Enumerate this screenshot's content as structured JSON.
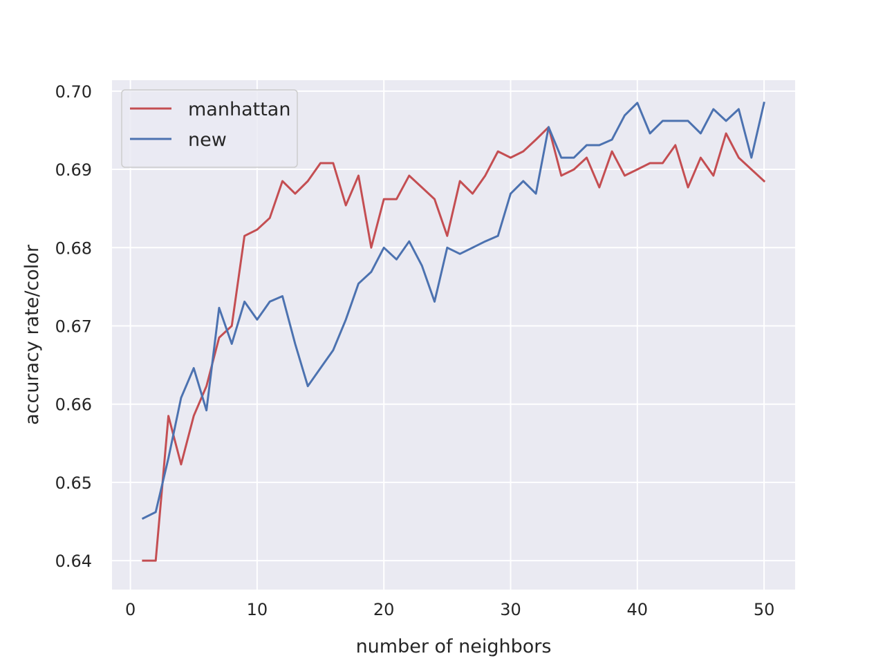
{
  "chart_data": {
    "type": "line",
    "title": "",
    "xlabel": "number of neighbors",
    "ylabel": "accuracy rate/color",
    "xlim": [
      -1.45,
      52.45
    ],
    "ylim": [
      0.6363,
      0.7014
    ],
    "xticks": [
      0,
      10,
      20,
      30,
      40,
      50
    ],
    "xtick_labels": [
      "0",
      "10",
      "20",
      "30",
      "40",
      "50"
    ],
    "yticks": [
      0.64,
      0.65,
      0.66,
      0.67,
      0.68,
      0.69,
      0.7
    ],
    "ytick_labels": [
      "0.64",
      "0.65",
      "0.66",
      "0.67",
      "0.68",
      "0.69",
      "0.70"
    ],
    "grid": true,
    "legend_position": "top-left",
    "x": [
      1,
      2,
      3,
      4,
      5,
      6,
      7,
      8,
      9,
      10,
      11,
      12,
      13,
      14,
      15,
      16,
      17,
      18,
      19,
      20,
      21,
      22,
      23,
      24,
      25,
      26,
      27,
      28,
      29,
      30,
      31,
      32,
      33,
      34,
      35,
      36,
      37,
      38,
      39,
      40,
      41,
      42,
      43,
      44,
      45,
      46,
      47,
      48,
      49,
      50
    ],
    "series": [
      {
        "name": "manhattan",
        "color": "#c44e52",
        "values": [
          0.64,
          0.64,
          0.6585,
          0.6523,
          0.6585,
          0.6623,
          0.6685,
          0.67,
          0.6815,
          0.6823,
          0.6838,
          0.6885,
          0.6869,
          0.6885,
          0.6908,
          0.6908,
          0.6854,
          0.6892,
          0.68,
          0.6862,
          0.6862,
          0.6892,
          0.6877,
          0.6862,
          0.6815,
          0.6885,
          0.6869,
          0.6892,
          0.6923,
          0.6915,
          0.6923,
          0.6938,
          0.6954,
          0.6892,
          0.69,
          0.6915,
          0.6877,
          0.6923,
          0.6892,
          0.69,
          0.6908,
          0.6908,
          0.6931,
          0.6877,
          0.6915,
          0.6892,
          0.6946,
          0.6915,
          0.69,
          0.6885
        ]
      },
      {
        "name": "new",
        "color": "#4c72b0",
        "values": [
          0.6454,
          0.6462,
          0.6531,
          0.6608,
          0.6646,
          0.6592,
          0.6723,
          0.6677,
          0.6731,
          0.6708,
          0.6731,
          0.6738,
          0.6677,
          0.6623,
          0.6646,
          0.6669,
          0.6708,
          0.6754,
          0.6769,
          0.68,
          0.6785,
          0.6808,
          0.6777,
          0.6731,
          0.68,
          0.6792,
          0.68,
          0.6808,
          0.6815,
          0.6869,
          0.6885,
          0.6869,
          0.6954,
          0.6915,
          0.6915,
          0.6931,
          0.6931,
          0.6938,
          0.6969,
          0.6985,
          0.6946,
          0.6962,
          0.6962,
          0.6962,
          0.6946,
          0.6977,
          0.6962,
          0.6977,
          0.6915,
          0.6985
        ]
      }
    ]
  },
  "colors": {
    "plot_background": "#eaeaf2",
    "grid": "#ffffff",
    "text": "#262626"
  }
}
